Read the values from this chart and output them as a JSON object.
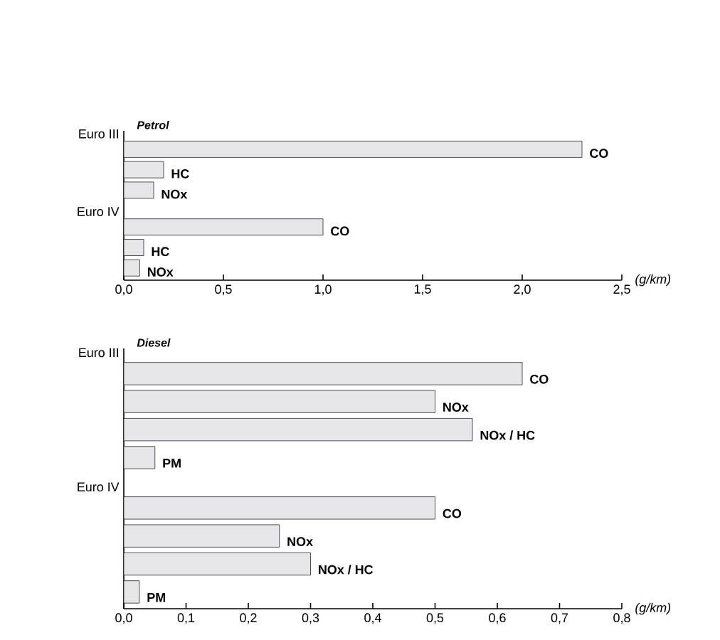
{
  "chart_data": [
    {
      "type": "bar",
      "orientation": "horizontal",
      "title": "Petrol",
      "xlabel": "(g/km)",
      "categories": [
        "Euro III",
        "Euro IV"
      ],
      "legend": false,
      "series": [
        {
          "name": "CO",
          "color": "#e6e6ea",
          "values": [
            2.3,
            1.0
          ]
        },
        {
          "name": "HC",
          "color": "#e6e6ea",
          "values": [
            0.2,
            0.1
          ]
        },
        {
          "name": "NOx",
          "color": "#e6e6ea",
          "values": [
            0.15,
            0.08
          ]
        }
      ],
      "xlim": [
        0,
        2.5
      ],
      "xticks": [
        {
          "value": 0,
          "label": "0,0"
        },
        {
          "value": 0.5,
          "label": "0,5"
        },
        {
          "value": 1,
          "label": "1,0"
        },
        {
          "value": 1.5,
          "label": "1,5"
        },
        {
          "value": 2,
          "label": "2,0"
        },
        {
          "value": 2.5,
          "label": "2,5"
        }
      ]
    },
    {
      "type": "bar",
      "orientation": "horizontal",
      "title": "Diesel",
      "xlabel": "(g/km)",
      "categories": [
        "Euro III",
        "Euro IV"
      ],
      "legend": false,
      "series": [
        {
          "name": "CO",
          "color": "#e6e6ea",
          "values": [
            0.64,
            0.5
          ]
        },
        {
          "name": "NOx",
          "color": "#e6e6ea",
          "values": [
            0.5,
            0.25
          ]
        },
        {
          "name": "NOx / HC",
          "color": "#e6e6ea",
          "values": [
            0.56,
            0.3
          ]
        },
        {
          "name": "PM",
          "color": "#e6e6ea",
          "values": [
            0.05,
            0.025
          ]
        }
      ],
      "xlim": [
        0,
        0.8
      ],
      "xticks": [
        {
          "value": 0,
          "label": "0,0"
        },
        {
          "value": 0.1,
          "label": "0,1"
        },
        {
          "value": 0.2,
          "label": "0,2"
        },
        {
          "value": 0.3,
          "label": "0,3"
        },
        {
          "value": 0.4,
          "label": "0,4"
        },
        {
          "value": 0.5,
          "label": "0,5"
        },
        {
          "value": 0.6,
          "label": "0,6"
        },
        {
          "value": 0.7,
          "label": "0,7"
        },
        {
          "value": 0.8,
          "label": "0,8"
        }
      ]
    }
  ]
}
